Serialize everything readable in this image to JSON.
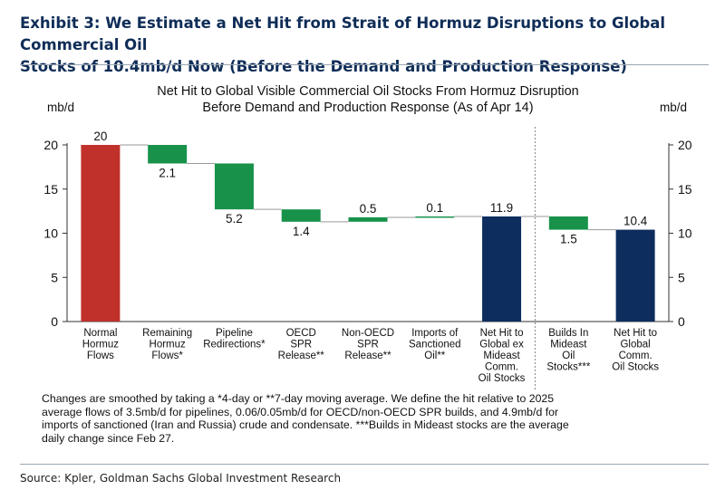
{
  "header": {
    "title_line1": "Exhibit 3: We Estimate a Net Hit from Strait of Hormuz Disruptions to Global Commercial Oil",
    "title_line2": "Stocks of 10.4mb/d Now (Before the Demand and Production Response)"
  },
  "colors": {
    "red": "#c0312b",
    "green": "#18924a",
    "navy": "#0d2d5e",
    "connector": "#9a9a9a",
    "axis": "#333333"
  },
  "chart_data": {
    "type": "waterfall",
    "title_line1": "Net Hit to Global Visible Commercial Oil Stocks From Hormuz Disruption",
    "title_line2": "Before Demand and Production Response (As of Apr 14)",
    "ylabel_left": "mb/d",
    "ylabel_right": "mb/d",
    "ylim": [
      0,
      20
    ],
    "yticks": [
      0,
      5,
      10,
      15,
      20
    ],
    "categories": [
      [
        "Normal",
        "Hormuz",
        "Flows"
      ],
      [
        "Remaining",
        "Hormuz",
        "Flows*"
      ],
      [
        "Pipeline",
        "Redirections*"
      ],
      [
        "OECD",
        "SPR",
        "Release**"
      ],
      [
        "Non-OECD",
        "SPR",
        "Release**"
      ],
      [
        "Imports of",
        "Sanctioned",
        "Oil**"
      ],
      [
        "Net Hit to",
        "Global ex",
        "Mideast",
        "Comm.",
        "Oil Stocks"
      ],
      [
        "Builds In",
        "Mideast",
        "Oil",
        "Stocks***"
      ],
      [
        "Net Hit to",
        "Global",
        "Comm.",
        "Oil Stocks"
      ]
    ],
    "bars": [
      {
        "kind": "total",
        "start": 0,
        "end": 20,
        "label": "20",
        "color": "red",
        "label_pos": "above"
      },
      {
        "kind": "delta",
        "start": 20,
        "end": 17.9,
        "label": "2.1",
        "color": "green",
        "label_pos": "below"
      },
      {
        "kind": "delta",
        "start": 17.9,
        "end": 12.7,
        "label": "5.2",
        "color": "green",
        "label_pos": "below"
      },
      {
        "kind": "delta",
        "start": 12.7,
        "end": 11.3,
        "label": "1.4",
        "color": "green",
        "label_pos": "below"
      },
      {
        "kind": "delta",
        "start": 11.3,
        "end": 11.8,
        "label": "0.5",
        "color": "green",
        "label_pos": "above"
      },
      {
        "kind": "delta",
        "start": 11.8,
        "end": 11.9,
        "label": "0.1",
        "color": "green",
        "label_pos": "above"
      },
      {
        "kind": "total",
        "start": 0,
        "end": 11.9,
        "label": "11.9",
        "color": "navy",
        "label_pos": "above"
      },
      {
        "kind": "delta",
        "start": 11.9,
        "end": 10.4,
        "label": "1.5",
        "color": "green",
        "label_pos": "below"
      },
      {
        "kind": "total",
        "start": 0,
        "end": 10.4,
        "label": "10.4",
        "color": "navy",
        "label_pos": "above"
      }
    ],
    "divider_after_index": 6
  },
  "footnote": {
    "line1": "Changes are smoothed by taking a *4-day or **7-day moving average. We define the hit relative to 2025",
    "line2": "average flows of 3.5mb/d for pipelines, 0.06/0.05mb/d for OECD/non-OECD SPR builds, and 4.9mb/d for",
    "line3": "imports of sanctioned (Iran and Russia) crude and condensate. ***Builds in Mideast stocks are the average",
    "line4": "daily change since Feb 27."
  },
  "source": "Source: Kpler, Goldman Sachs Global Investment Research"
}
